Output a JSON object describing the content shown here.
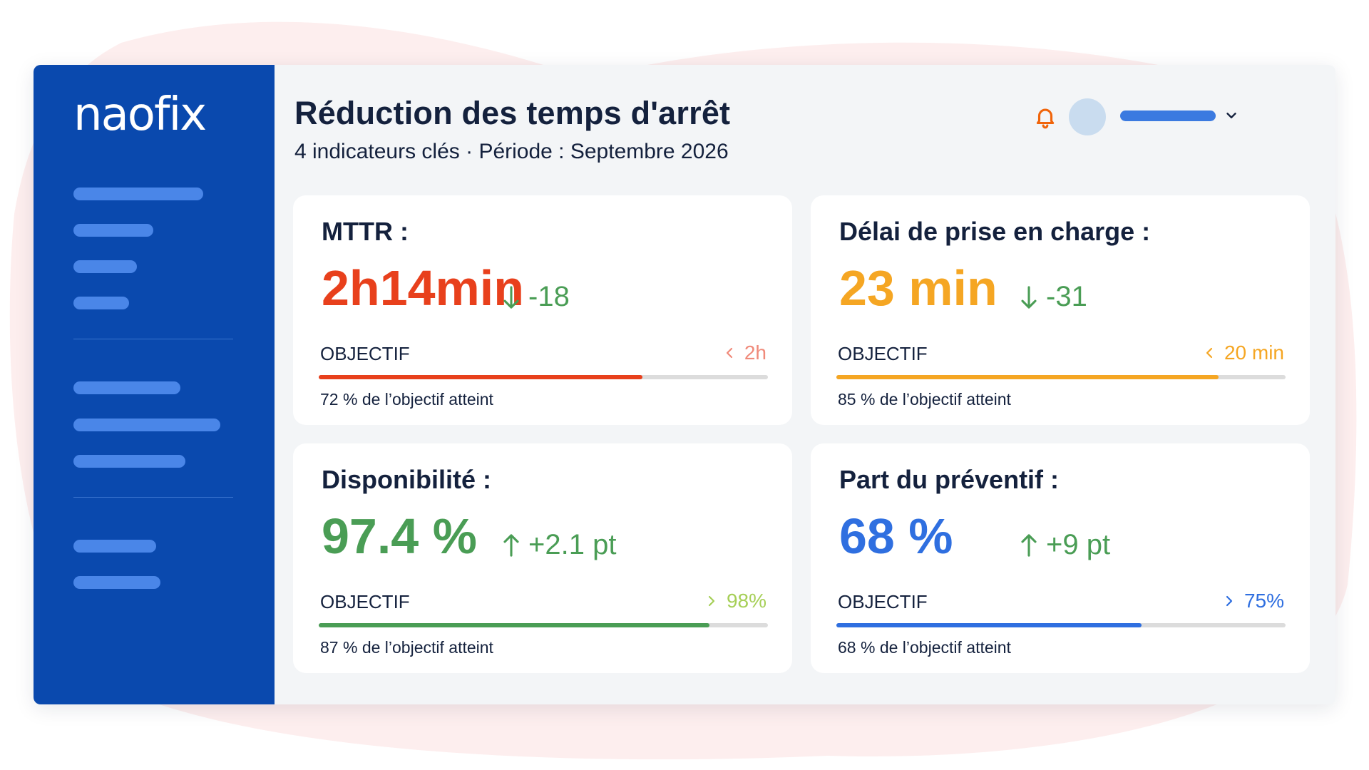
{
  "app": {
    "logo": "naofix",
    "title": "Réduction des temps d'arrêt",
    "subtitle": "4 indicateurs clés · Période : Septembre 2026"
  },
  "icons": {
    "notification": "bell-icon",
    "account_menu": "chevron-down-icon",
    "delta_down": "arrow-down-icon",
    "delta_up": "arrow-up-icon",
    "target_less": "chevron-left-icon",
    "target_more": "chevron-right-icon"
  },
  "colors": {
    "sidebar": "#0a49ae",
    "sidebar_placeholder": "#4a86e8",
    "notification": "#f0640a",
    "delta_positive": "#4a9d55",
    "mttr": "#e8401c",
    "delai": "#f5a623",
    "disponibilite": "#4a9d55",
    "preventif": "#2f6fe0"
  },
  "kpis": {
    "mttr": {
      "title": "MTTR :",
      "value": "2h14min",
      "delta": "-18",
      "objective_label": "OBJECTIF",
      "objective_target": "2h",
      "progress": 0.72,
      "caption": "72 % de l’objectif atteint"
    },
    "delai": {
      "title": "Délai de prise en charge :",
      "value": "23 min",
      "delta": "-31",
      "objective_label": "OBJECTIF",
      "objective_target": "20 min",
      "progress": 0.85,
      "caption": "85 % de l’objectif atteint"
    },
    "disponibilite": {
      "title": "Disponibilité :",
      "value": "97.4 %",
      "delta": "+2.1 pt",
      "objective_label": "OBJECTIF",
      "objective_target": "98%",
      "progress": 0.87,
      "caption": "87 % de l’objectif atteint"
    },
    "preventif": {
      "title": "Part du préventif :",
      "value": "68 %",
      "delta": "+9 pt",
      "objective_label": "OBJECTIF",
      "objective_target": "75%",
      "progress": 0.68,
      "caption": "68 % de l’objectif atteint"
    }
  }
}
